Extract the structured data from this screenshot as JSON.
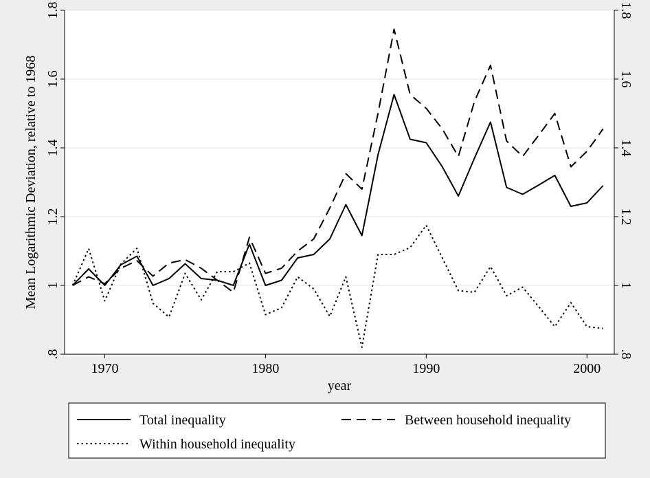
{
  "chart_data": {
    "type": "line",
    "title": "",
    "xlabel": "year",
    "ylabel": "Mean Logarithmic Deviation, relative to 1968",
    "xlim": [
      1967.5,
      2001.7
    ],
    "ylim": [
      0.8,
      1.8
    ],
    "xticks": [
      1970,
      1980,
      1990,
      2000
    ],
    "yticks": [
      0.8,
      1.0,
      1.2,
      1.4,
      1.6,
      1.8
    ],
    "ytick_labels": [
      ".8",
      "1",
      "1.2",
      "1.4",
      "1.6",
      "1.8"
    ],
    "y_axis_right": true,
    "grid": "horizontal",
    "legend_position": "bottom",
    "x": [
      1968,
      1969,
      1970,
      1971,
      1972,
      1973,
      1974,
      1975,
      1976,
      1977,
      1978,
      1979,
      1980,
      1981,
      1982,
      1983,
      1984,
      1985,
      1986,
      1987,
      1988,
      1989,
      1990,
      1991,
      1992,
      1993,
      1994,
      1995,
      1996,
      1997,
      1998,
      1999,
      2000,
      2001
    ],
    "series": [
      {
        "name": "Total inequality",
        "style": "solid",
        "color": "#000000",
        "values": [
          1.0,
          1.048,
          1.0,
          1.06,
          1.085,
          1.0,
          1.02,
          1.063,
          1.02,
          1.015,
          1.0,
          1.12,
          1.0,
          1.015,
          1.08,
          1.09,
          1.135,
          1.235,
          1.145,
          1.38,
          1.555,
          1.425,
          1.415,
          1.345,
          1.26,
          1.37,
          1.475,
          1.285,
          1.265,
          1.292,
          1.32,
          1.23,
          1.24,
          1.29
        ]
      },
      {
        "name": "Between household inequality",
        "style": "dashed",
        "color": "#000000",
        "values": [
          1.0,
          1.025,
          1.005,
          1.05,
          1.072,
          1.027,
          1.065,
          1.075,
          1.05,
          1.015,
          0.98,
          1.14,
          1.035,
          1.05,
          1.1,
          1.135,
          1.225,
          1.325,
          1.28,
          1.5,
          1.745,
          1.555,
          1.515,
          1.455,
          1.375,
          1.535,
          1.64,
          1.42,
          1.375,
          1.437,
          1.5,
          1.345,
          1.39,
          1.455
        ]
      },
      {
        "name": "Within household inequality",
        "style": "dotted",
        "color": "#000000",
        "values": [
          1.0,
          1.107,
          0.955,
          1.062,
          1.108,
          0.948,
          0.908,
          1.035,
          0.958,
          1.04,
          1.04,
          1.065,
          0.915,
          0.935,
          1.025,
          0.99,
          0.91,
          1.025,
          0.82,
          1.09,
          1.09,
          1.11,
          1.175,
          1.08,
          0.985,
          0.98,
          1.055,
          0.97,
          0.995,
          0.938,
          0.88,
          0.95,
          0.88,
          0.875
        ]
      }
    ]
  }
}
